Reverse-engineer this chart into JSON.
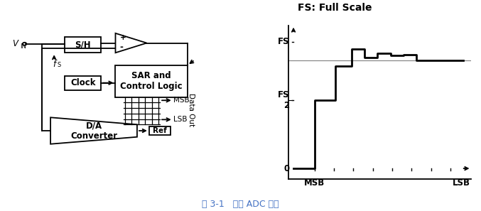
{
  "fig_width": 6.77,
  "fig_height": 2.97,
  "dpi": 100,
  "bg_color": "#ffffff",
  "caption": "图 3-1   经典 ADC 结构",
  "caption_color": "#4472C4",
  "caption_fontsize": 9,
  "lw": 1.3,
  "diagram": {
    "sh_label": "S/H",
    "clock_label": "Clock",
    "sar_label": "SAR and\nControl Logic",
    "da_label": "D/A\nConverter",
    "ref_label": "Ref",
    "msb_label": "MSB",
    "lsb_label": "LSB",
    "data_out_label": "Data Out"
  },
  "graph": {
    "title": "FS: Full Scale",
    "xlabel_msb": "MSB",
    "xlabel_lsb": "LSB",
    "ylabel_fs": "FS",
    "ylabel_fs2": "FS",
    "ylabel_2": "2",
    "ylabel_0": "0",
    "title_fontsize": 10,
    "label_fontsize": 8.5
  }
}
